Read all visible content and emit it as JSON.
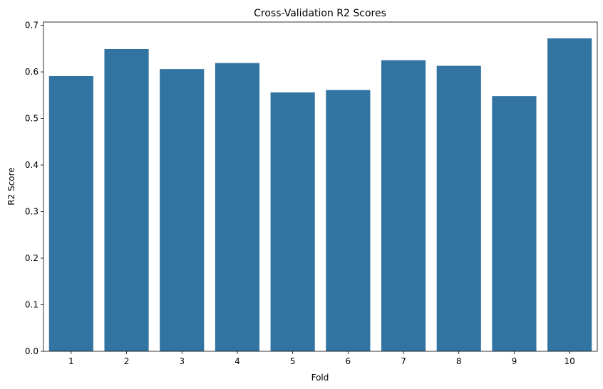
{
  "chart_data": {
    "type": "bar",
    "title": "Cross-Validation R2 Scores",
    "xlabel": "Fold",
    "ylabel": "R2 Score",
    "categories": [
      "1",
      "2",
      "3",
      "4",
      "5",
      "6",
      "7",
      "8",
      "9",
      "10"
    ],
    "values": [
      0.591,
      0.649,
      0.606,
      0.619,
      0.556,
      0.561,
      0.625,
      0.613,
      0.548,
      0.672
    ],
    "ylim": [
      0,
      0.707
    ],
    "yticks": [
      "0.0",
      "0.1",
      "0.2",
      "0.3",
      "0.4",
      "0.5",
      "0.6",
      "0.7"
    ],
    "bar_color": "#3274a1",
    "grid": false,
    "legend": "none"
  }
}
